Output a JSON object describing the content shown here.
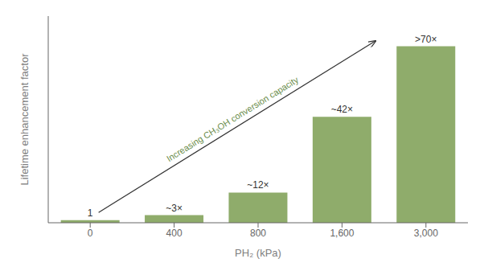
{
  "chart_data": {
    "type": "bar",
    "categories": [
      "0",
      "400",
      "800",
      "1,600",
      "3,000"
    ],
    "values": [
      1,
      3,
      12,
      42,
      70
    ],
    "value_labels": [
      "1",
      "~3×",
      "~12×",
      "~42×",
      ">70×"
    ],
    "data_labels": true,
    "color": "#8fac6b",
    "xlabel": "PH₂ (kPa)",
    "ylabel": "Lifetime enhancement factor",
    "annotation": "Increasing CH₃OH conversion capacity",
    "ylim": [
      0,
      82
    ],
    "tick_labels": "x",
    "grid": false
  }
}
